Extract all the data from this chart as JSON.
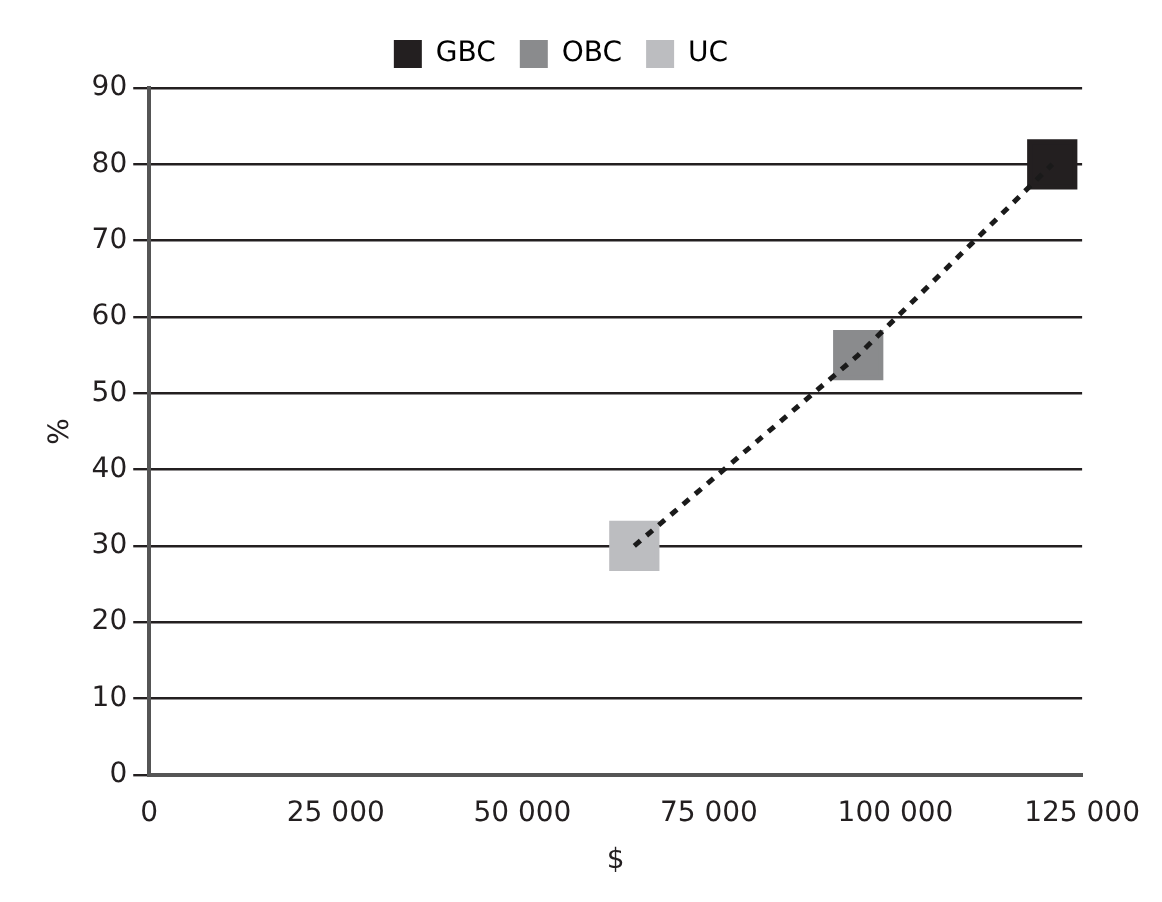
{
  "chart_data": {
    "type": "line",
    "xlabel": "$",
    "ylabel": "%",
    "xlim": [
      0,
      125000
    ],
    "xticks": [
      0,
      {
        "value": 25000,
        "label": "25 000"
      },
      {
        "value": 50000,
        "label": "50 000"
      },
      {
        "value": 75000,
        "label": "75 000"
      },
      {
        "value": 100000,
        "label": "100 000"
      },
      {
        "value": 125000,
        "label": "125 000"
      }
    ],
    "ylim": [
      0,
      90
    ],
    "yticks": [
      0,
      10,
      20,
      30,
      40,
      50,
      60,
      70,
      80,
      90
    ],
    "grid": "y",
    "legend": "top",
    "marker": "square",
    "line_style": "dashed",
    "series": [
      {
        "type": "line",
        "marker": "none",
        "color": "#1a1a1a",
        "x": [
          65000,
          95000,
          121000
        ],
        "values": [
          30,
          55,
          80
        ]
      },
      {
        "name": "GBC",
        "color": "#231f20",
        "x": [
          121000
        ],
        "values": [
          80
        ]
      },
      {
        "name": "OBC",
        "color": "#8a8b8d",
        "x": [
          95000
        ],
        "values": [
          55
        ]
      },
      {
        "name": "UC",
        "color": "#bcbdc0",
        "x": [
          65000
        ],
        "values": [
          30
        ]
      }
    ]
  }
}
